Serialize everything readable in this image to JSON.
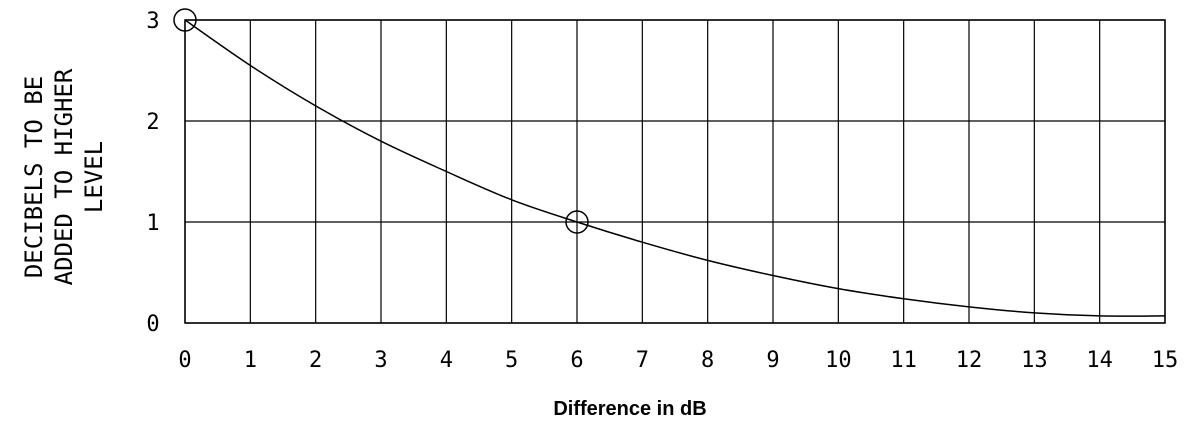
{
  "chart_data": {
    "type": "line",
    "xlabel": "Difference in dB",
    "ylabel_lines": [
      "DECIBELS TO BE",
      "ADDED TO HIGHER",
      "LEVEL"
    ],
    "xlim": [
      0,
      15
    ],
    "ylim": [
      0,
      3
    ],
    "x_ticks": [
      "0",
      "1",
      "2",
      "3",
      "4",
      "5",
      "6",
      "7",
      "8",
      "9",
      "10",
      "11",
      "12",
      "13",
      "14",
      "15"
    ],
    "y_ticks": [
      "0",
      "1",
      "2",
      "3"
    ],
    "grid": true,
    "series": [
      {
        "x": [
          0,
          1,
          2,
          3,
          4,
          5,
          6,
          7,
          8,
          9,
          10,
          11,
          12,
          13,
          14,
          15
        ],
        "values": [
          3.0,
          2.55,
          2.15,
          1.8,
          1.5,
          1.22,
          1.0,
          0.8,
          0.62,
          0.47,
          0.34,
          0.24,
          0.16,
          0.1,
          0.07,
          0.07
        ]
      }
    ],
    "markers": [
      {
        "x": 0,
        "y": 3.0
      },
      {
        "x": 6,
        "y": 1.0
      }
    ]
  }
}
